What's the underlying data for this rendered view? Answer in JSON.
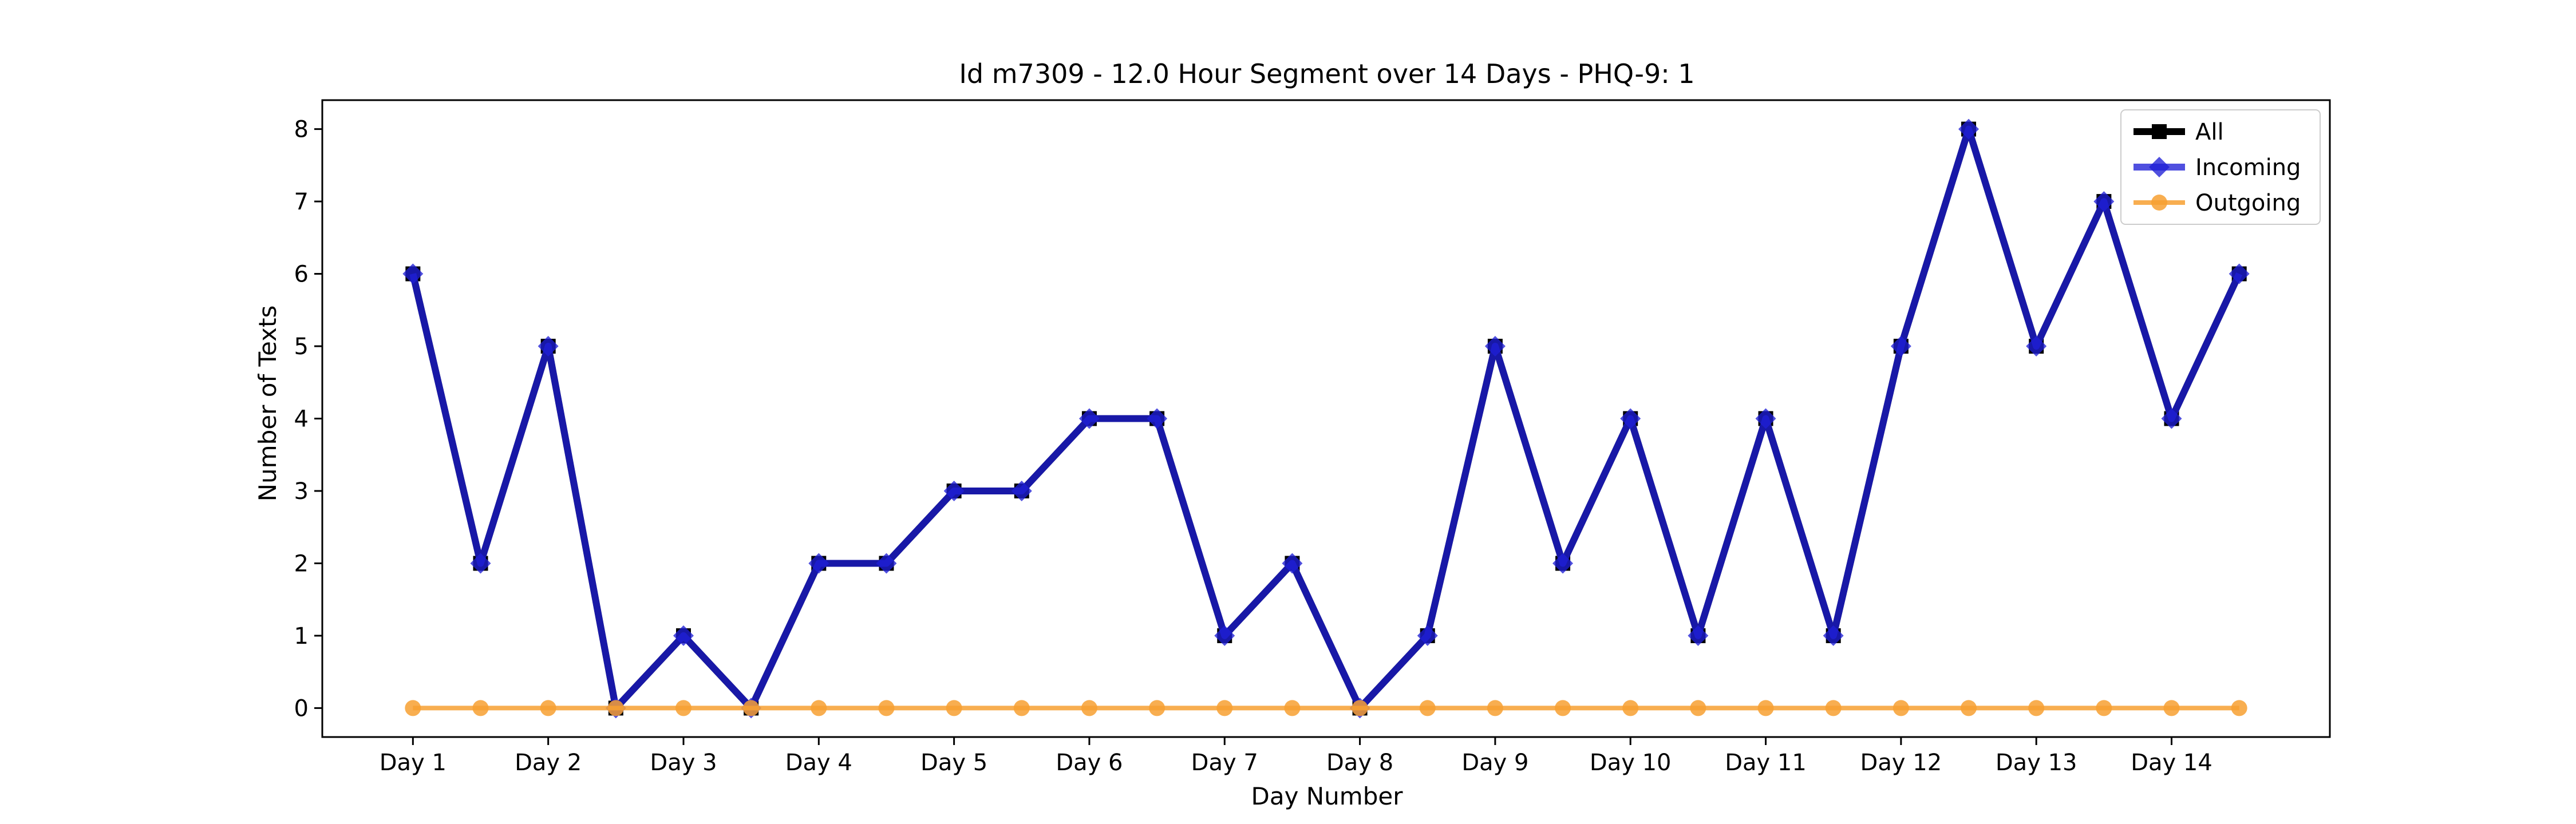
{
  "chart_data": {
    "type": "line",
    "title": "Id m7309 - 12.0 Hour Segment over 14 Days - PHQ-9: 1",
    "xlabel": "Day Number",
    "ylabel": "Number of Texts",
    "categories": [
      "Day 1",
      "Day 2",
      "Day 3",
      "Day 4",
      "Day 5",
      "Day 6",
      "Day 7",
      "Day 8",
      "Day 9",
      "Day 10",
      "Day 11",
      "Day 12",
      "Day 13",
      "Day 14"
    ],
    "x": [
      1,
      1.5,
      2,
      2.5,
      3,
      3.5,
      4,
      4.5,
      5,
      5.5,
      6,
      6.5,
      7,
      7.5,
      8,
      8.5,
      9,
      9.5,
      10,
      10.5,
      11,
      11.5,
      12,
      12.5,
      13,
      13.5,
      14,
      14.5
    ],
    "xlim": [
      0.33,
      15.17
    ],
    "ylim": [
      -0.4,
      8.4
    ],
    "yticks": [
      0,
      1,
      2,
      3,
      4,
      5,
      6,
      7,
      8
    ],
    "grid": false,
    "legend_position": "top-right",
    "series": [
      {
        "name": "All",
        "color": "#000000",
        "marker": "square",
        "values": [
          6,
          2,
          5,
          0,
          1,
          0,
          2,
          2,
          3,
          3,
          4,
          4,
          1,
          2,
          0,
          1,
          5,
          2,
          4,
          1,
          4,
          1,
          5,
          8,
          5,
          7,
          4,
          6
        ]
      },
      {
        "name": "Incoming",
        "color": "#1f1fd6",
        "marker": "diamond",
        "values": [
          6,
          2,
          5,
          0,
          1,
          0,
          2,
          2,
          3,
          3,
          4,
          4,
          1,
          2,
          0,
          1,
          5,
          2,
          4,
          1,
          4,
          1,
          5,
          8,
          5,
          7,
          4,
          6
        ]
      },
      {
        "name": "Outgoing",
        "color": "#f7a031",
        "marker": "circle",
        "values": [
          0,
          0,
          0,
          0,
          0,
          0,
          0,
          0,
          0,
          0,
          0,
          0,
          0,
          0,
          0,
          0,
          0,
          0,
          0,
          0,
          0,
          0,
          0,
          0,
          0,
          0,
          0,
          0
        ]
      }
    ]
  }
}
